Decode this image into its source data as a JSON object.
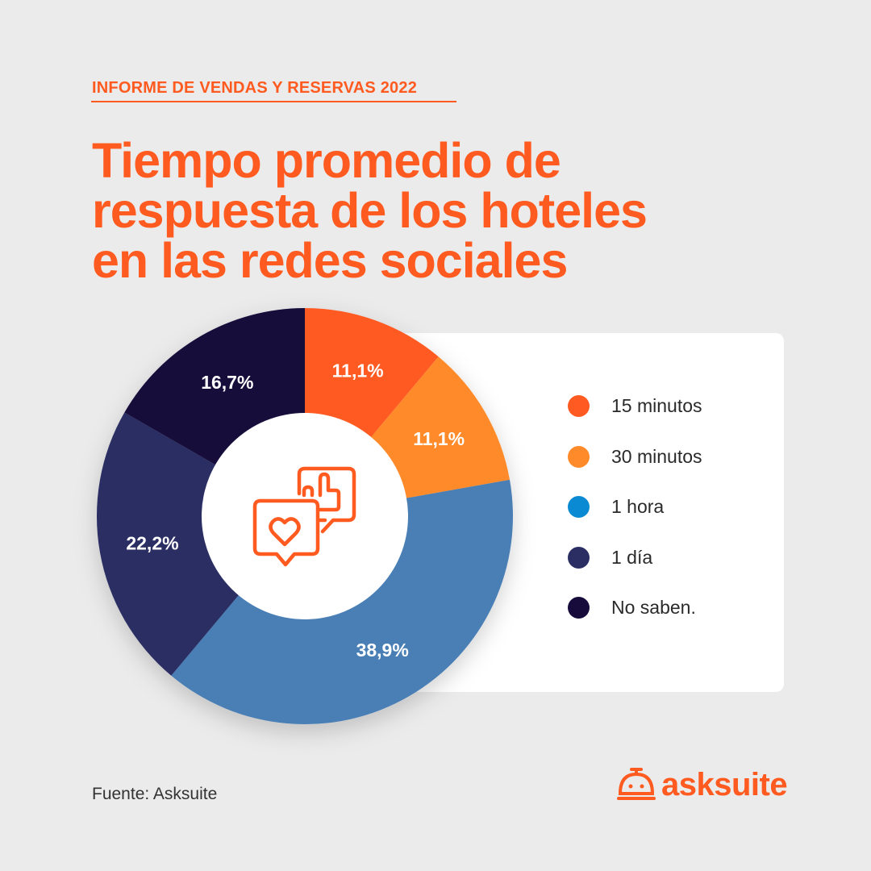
{
  "kicker": "INFORME DE VENDAS Y RESERVAS 2022",
  "title_lines": [
    "Tiempo promedio de",
    "respuesta de los hoteles",
    "en las redes sociales"
  ],
  "source": "Fuente: Asksuite",
  "logo": "asksuite",
  "center_icon": "chat-heart-thumbs-up-icon",
  "chart_data": {
    "type": "pie",
    "donut": true,
    "title": "Tiempo promedio de respuesta de los hoteles en las redes sociales",
    "categories": [
      "15 minutos",
      "30 minutos",
      "1 hora",
      "1 día",
      "No saben."
    ],
    "values": [
      11.1,
      11.1,
      38.9,
      22.2,
      16.7
    ],
    "data_labels": [
      "11,1%",
      "11,1%",
      "38,9%",
      "22,2%",
      "16,7%"
    ],
    "slice_colors": [
      "#ff5a22",
      "#ff8a2a",
      "#4a7fb5",
      "#2a2e63",
      "#170b3b"
    ],
    "legend_colors": [
      "#ff5a22",
      "#ff8a2a",
      "#0a8ad2",
      "#2a2e63",
      "#170b3b"
    ],
    "legend_placement": "right"
  }
}
